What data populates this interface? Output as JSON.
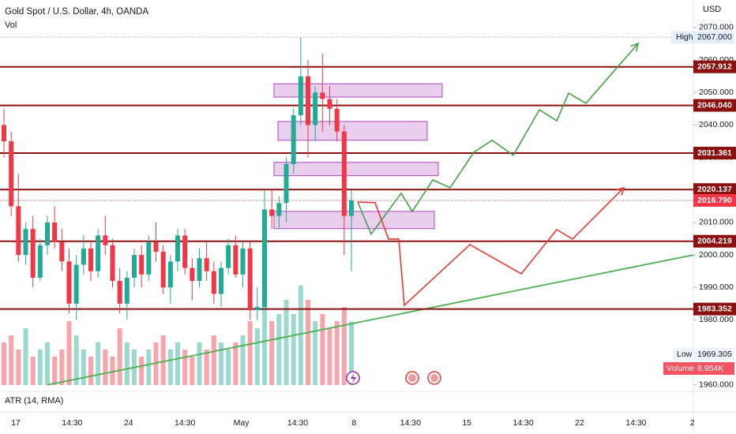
{
  "chart_data": {
    "type": "candlestick",
    "title": "Gold Spot / U.S. Dollar, 4h, OANDA",
    "volume_title": "Vol",
    "currency": "USD",
    "indicator": "ATR (14, RMA)",
    "categories": [
      "17",
      "14:30",
      "24",
      "14:30",
      "May",
      "14:30",
      "8",
      "14:30",
      "15",
      "14:30",
      "22",
      "14:30",
      "2"
    ],
    "candles": [
      [
        2040,
        2045,
        2030,
        2035
      ],
      [
        2035,
        2038,
        2012,
        2015
      ],
      [
        2015,
        2025,
        1998,
        2000
      ],
      [
        2000,
        2010,
        1997,
        2008
      ],
      [
        2008,
        2012,
        1990,
        1993
      ],
      [
        1993,
        2005,
        1992,
        2003
      ],
      [
        2003,
        2012,
        2000,
        2010
      ],
      [
        2010,
        2015,
        2002,
        2004
      ],
      [
        2004,
        2008,
        1995,
        1998
      ],
      [
        1998,
        2002,
        1982,
        1985
      ],
      [
        1985,
        2000,
        1980,
        1997
      ],
      [
        1997,
        2006,
        1994,
        2002
      ],
      [
        2002,
        2004,
        1992,
        1995
      ],
      [
        1995,
        2008,
        1993,
        2006
      ],
      [
        2006,
        2012,
        2000,
        2003
      ],
      [
        2003,
        2005,
        1990,
        1992
      ],
      [
        1992,
        1996,
        1982,
        1985
      ],
      [
        1985,
        1995,
        1980,
        1993
      ],
      [
        1993,
        2002,
        1990,
        2000
      ],
      [
        2000,
        2003,
        1990,
        1994
      ],
      [
        1994,
        2006,
        1992,
        2004
      ],
      [
        2004,
        2010,
        1998,
        2001
      ],
      [
        2001,
        2003,
        1988,
        1990
      ],
      [
        1990,
        2000,
        1985,
        1998
      ],
      [
        1998,
        2008,
        1995,
        2006
      ],
      [
        2006,
        2008,
        1994,
        1996
      ],
      [
        1996,
        1999,
        1986,
        1992
      ],
      [
        1992,
        2002,
        1990,
        1999
      ],
      [
        1999,
        2004,
        1992,
        1995
      ],
      [
        1995,
        1998,
        1985,
        1988
      ],
      [
        1988,
        1998,
        1984,
        1996
      ],
      [
        1996,
        2005,
        1994,
        2003
      ],
      [
        2003,
        2006,
        1993,
        1994
      ],
      [
        1994,
        2004,
        1990,
        2002
      ],
      [
        2002,
        2004,
        1980,
        1983
      ],
      [
        1983,
        1990,
        1980,
        1984
      ],
      [
        1984,
        2020,
        1983,
        2014
      ],
      [
        2014,
        2020,
        2008,
        2012
      ],
      [
        2012,
        2018,
        2008,
        2016
      ],
      [
        2016,
        2030,
        2010,
        2028
      ],
      [
        2028,
        2045,
        2025,
        2043
      ],
      [
        2043,
        2067,
        2040,
        2055
      ],
      [
        2055,
        2060,
        2030,
        2040
      ],
      [
        2040,
        2052,
        2035,
        2050
      ],
      [
        2050,
        2062,
        2038,
        2048
      ],
      [
        2048,
        2052,
        2040,
        2045
      ],
      [
        2045,
        2048,
        2035,
        2038
      ],
      [
        2038,
        2040,
        2000,
        2012
      ],
      [
        2012,
        2020,
        1995,
        2016.79
      ]
    ],
    "volume": [
      6,
      7,
      5,
      8,
      4,
      5,
      6,
      4,
      5,
      9,
      7,
      5,
      4,
      6,
      5,
      4,
      8,
      6,
      5,
      4,
      5,
      6,
      7,
      5,
      6,
      5,
      4,
      6,
      5,
      7,
      6,
      5,
      6,
      7,
      9,
      8,
      11,
      9,
      10,
      12,
      10,
      14,
      12,
      9,
      10,
      8,
      9,
      11,
      8.954
    ],
    "up_color": "#22ab94",
    "down_color": "#f23645",
    "ylim": [
      1958,
      2078
    ],
    "yticks": [
      {
        "value": 1960,
        "label": "1960.000"
      },
      {
        "value": 1970,
        "label": "1970.000"
      },
      {
        "value": 1980,
        "label": "1980.000"
      },
      {
        "value": 1990,
        "label": "1990.000"
      },
      {
        "value": 2000,
        "label": "2000.000"
      },
      {
        "value": 2010,
        "label": "2010.000"
      },
      {
        "value": 2020,
        "label": "2020.000"
      },
      {
        "value": 2030,
        "label": "2030.000"
      },
      {
        "value": 2040,
        "label": "2040.000"
      },
      {
        "value": 2050,
        "label": "2050.000"
      },
      {
        "value": 2060,
        "label": "2060.000"
      },
      {
        "value": 2070,
        "label": "2070.000"
      }
    ],
    "levels": [
      {
        "value": 2057.912,
        "label": "2057.912"
      },
      {
        "value": 2046.04,
        "label": "2046.040"
      },
      {
        "value": 2031.361,
        "label": "2031.361"
      },
      {
        "value": 2020.137,
        "label": "2020.137"
      },
      {
        "value": 2004.219,
        "label": "2004.219"
      },
      {
        "value": 1983.352,
        "label": "1983.352"
      }
    ],
    "level_color": "#8b1010",
    "zones": [
      [
        2052.7,
        2048.6
      ],
      [
        2041.1,
        2035.3
      ],
      [
        2028.5,
        2024.4
      ],
      [
        2013.4,
        2008.1
      ]
    ],
    "zone_color": "#e1bee7",
    "projections": [
      {
        "color": "#43a047",
        "values": [
          2016.3,
          2006.4,
          2019.0,
          2013.4,
          2023.1,
          2020.7,
          2031.6,
          2035.3,
          2030.7,
          2044.7,
          2041.3,
          2049.8,
          2046.7,
          2065.1
        ]
      },
      {
        "color": "#e53935",
        "values": [
          2016.3,
          2016.1,
          2004.9,
          2004.9,
          1984.5,
          2003.2,
          1994.2,
          2007.8,
          2004.9,
          2020.7
        ]
      }
    ],
    "trendline": {
      "color": "#4caf50",
      "values": [
        1960,
        2000
      ]
    },
    "last_price": {
      "value": 2016.79,
      "label": "2016.790"
    },
    "high": {
      "text": "High",
      "value": 2067,
      "label": "2067.000"
    },
    "low": {
      "text": "Low",
      "value": 1969.305,
      "label": "1969.305"
    },
    "volume_tag": {
      "text": "Volume",
      "value": 8.954,
      "label": "8.954K"
    }
  }
}
